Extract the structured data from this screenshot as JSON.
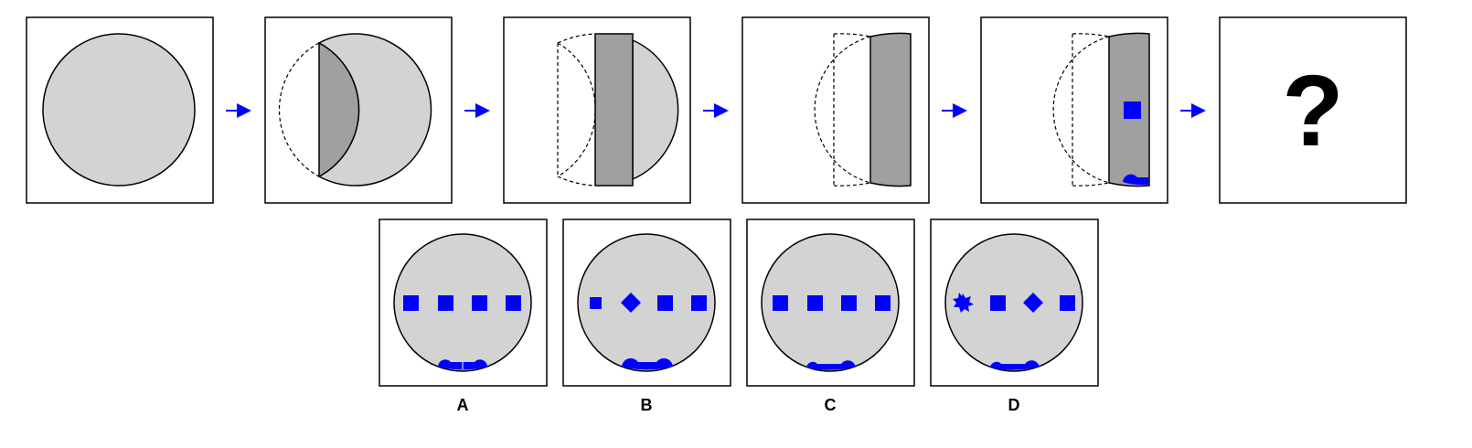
{
  "sequence": {
    "step_count": 5,
    "unknown_panel_text": "?"
  },
  "options": {
    "labels": [
      "A",
      "B",
      "C",
      "D"
    ]
  },
  "colors": {
    "circle_fill": "#d3d3d3",
    "fold_fill": "#a0a0a0",
    "accent": "#0000ff",
    "frame": "#000000"
  },
  "icons": [
    "arrow-right-icon",
    "square-marker-icon",
    "diamond-marker-icon",
    "star-marker-icon",
    "semicircle-marker-icon"
  ]
}
